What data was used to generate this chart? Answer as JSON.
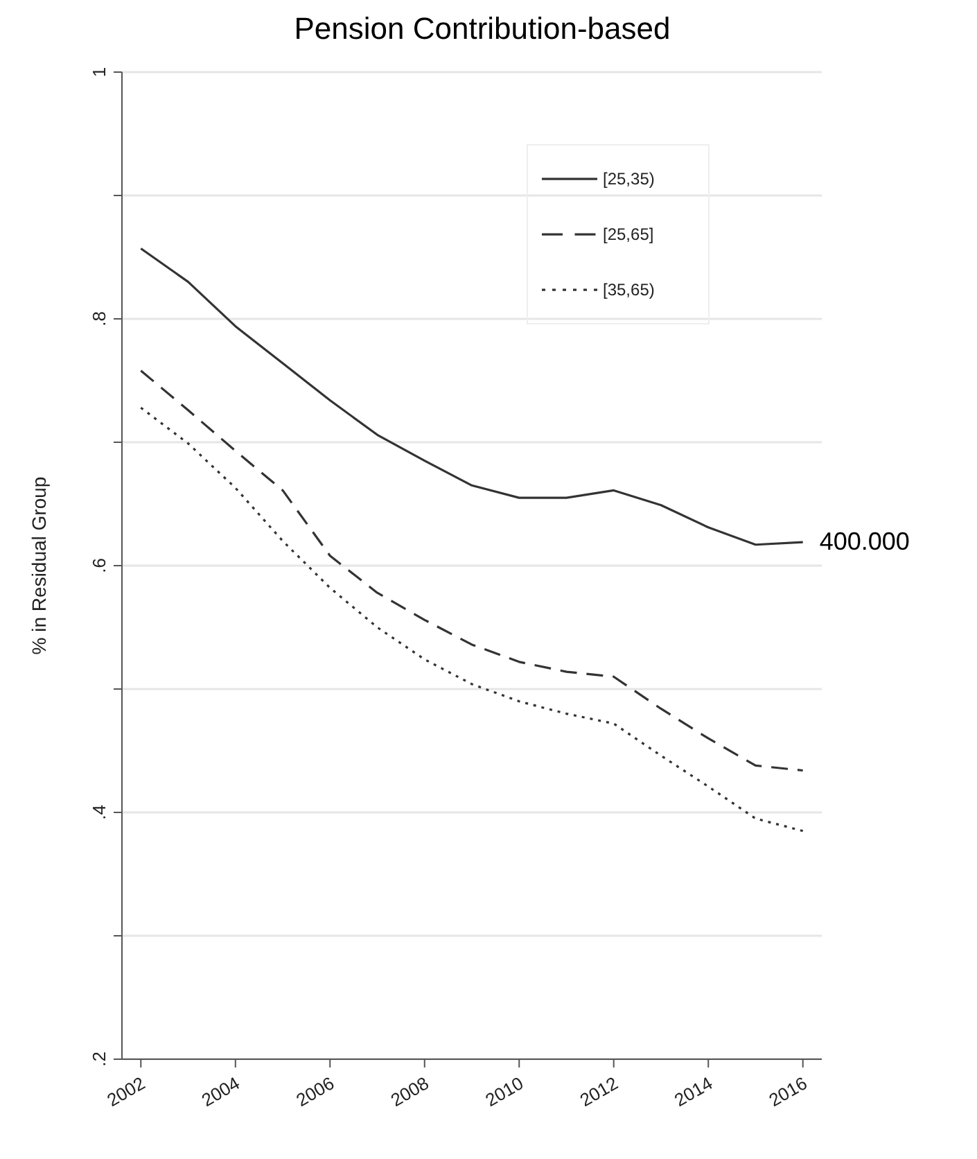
{
  "chart_data": {
    "type": "line",
    "title": "Pension Contribution-based",
    "ylabel": "% in Residual Group",
    "x": [
      2002,
      2003,
      2004,
      2005,
      2006,
      2007,
      2008,
      2009,
      2010,
      2011,
      2012,
      2013,
      2014,
      2015,
      2016
    ],
    "xlim": [
      2001.6,
      2016.4
    ],
    "xticks": [
      2002,
      2004,
      2006,
      2008,
      2010,
      2012,
      2014,
      2016
    ],
    "ylim": [
      0.2,
      1
    ],
    "yticks": [
      {
        "value": 0.2,
        "label": ".2"
      },
      {
        "value": 0.3,
        "label": null
      },
      {
        "value": 0.4,
        "label": ".4"
      },
      {
        "value": 0.5,
        "label": null
      },
      {
        "value": 0.6,
        "label": ".6"
      },
      {
        "value": 0.7,
        "label": null
      },
      {
        "value": 0.8,
        "label": ".8"
      },
      {
        "value": 0.9,
        "label": null
      },
      {
        "value": 1,
        "label": "1"
      }
    ],
    "grid": "y",
    "legend": "top right",
    "marker": "none",
    "series": [
      {
        "name": "[25,35)",
        "color": "#333333",
        "line_style": "solid",
        "values": [
          0.857,
          0.83,
          0.794,
          0.764,
          0.734,
          0.706,
          0.685,
          0.665,
          0.655,
          0.655,
          0.661,
          0.649,
          0.631,
          0.617,
          0.619
        ]
      },
      {
        "name": "[25,65]",
        "color": "#333333",
        "line_style": "dashed",
        "values": [
          0.758,
          0.726,
          0.693,
          0.661,
          0.608,
          0.578,
          0.556,
          0.536,
          0.522,
          0.514,
          0.51,
          0.484,
          0.46,
          0.438,
          0.434
        ]
      },
      {
        "name": "[35,65)",
        "color": "#333333",
        "line_style": "dotted",
        "values": [
          0.728,
          0.699,
          0.663,
          0.62,
          0.582,
          0.55,
          0.524,
          0.504,
          0.49,
          0.48,
          0.472,
          0.446,
          0.421,
          0.395,
          0.385
        ]
      }
    ],
    "annotations": [
      {
        "text": "400.000",
        "x": 2016,
        "y": 0.62
      }
    ]
  }
}
